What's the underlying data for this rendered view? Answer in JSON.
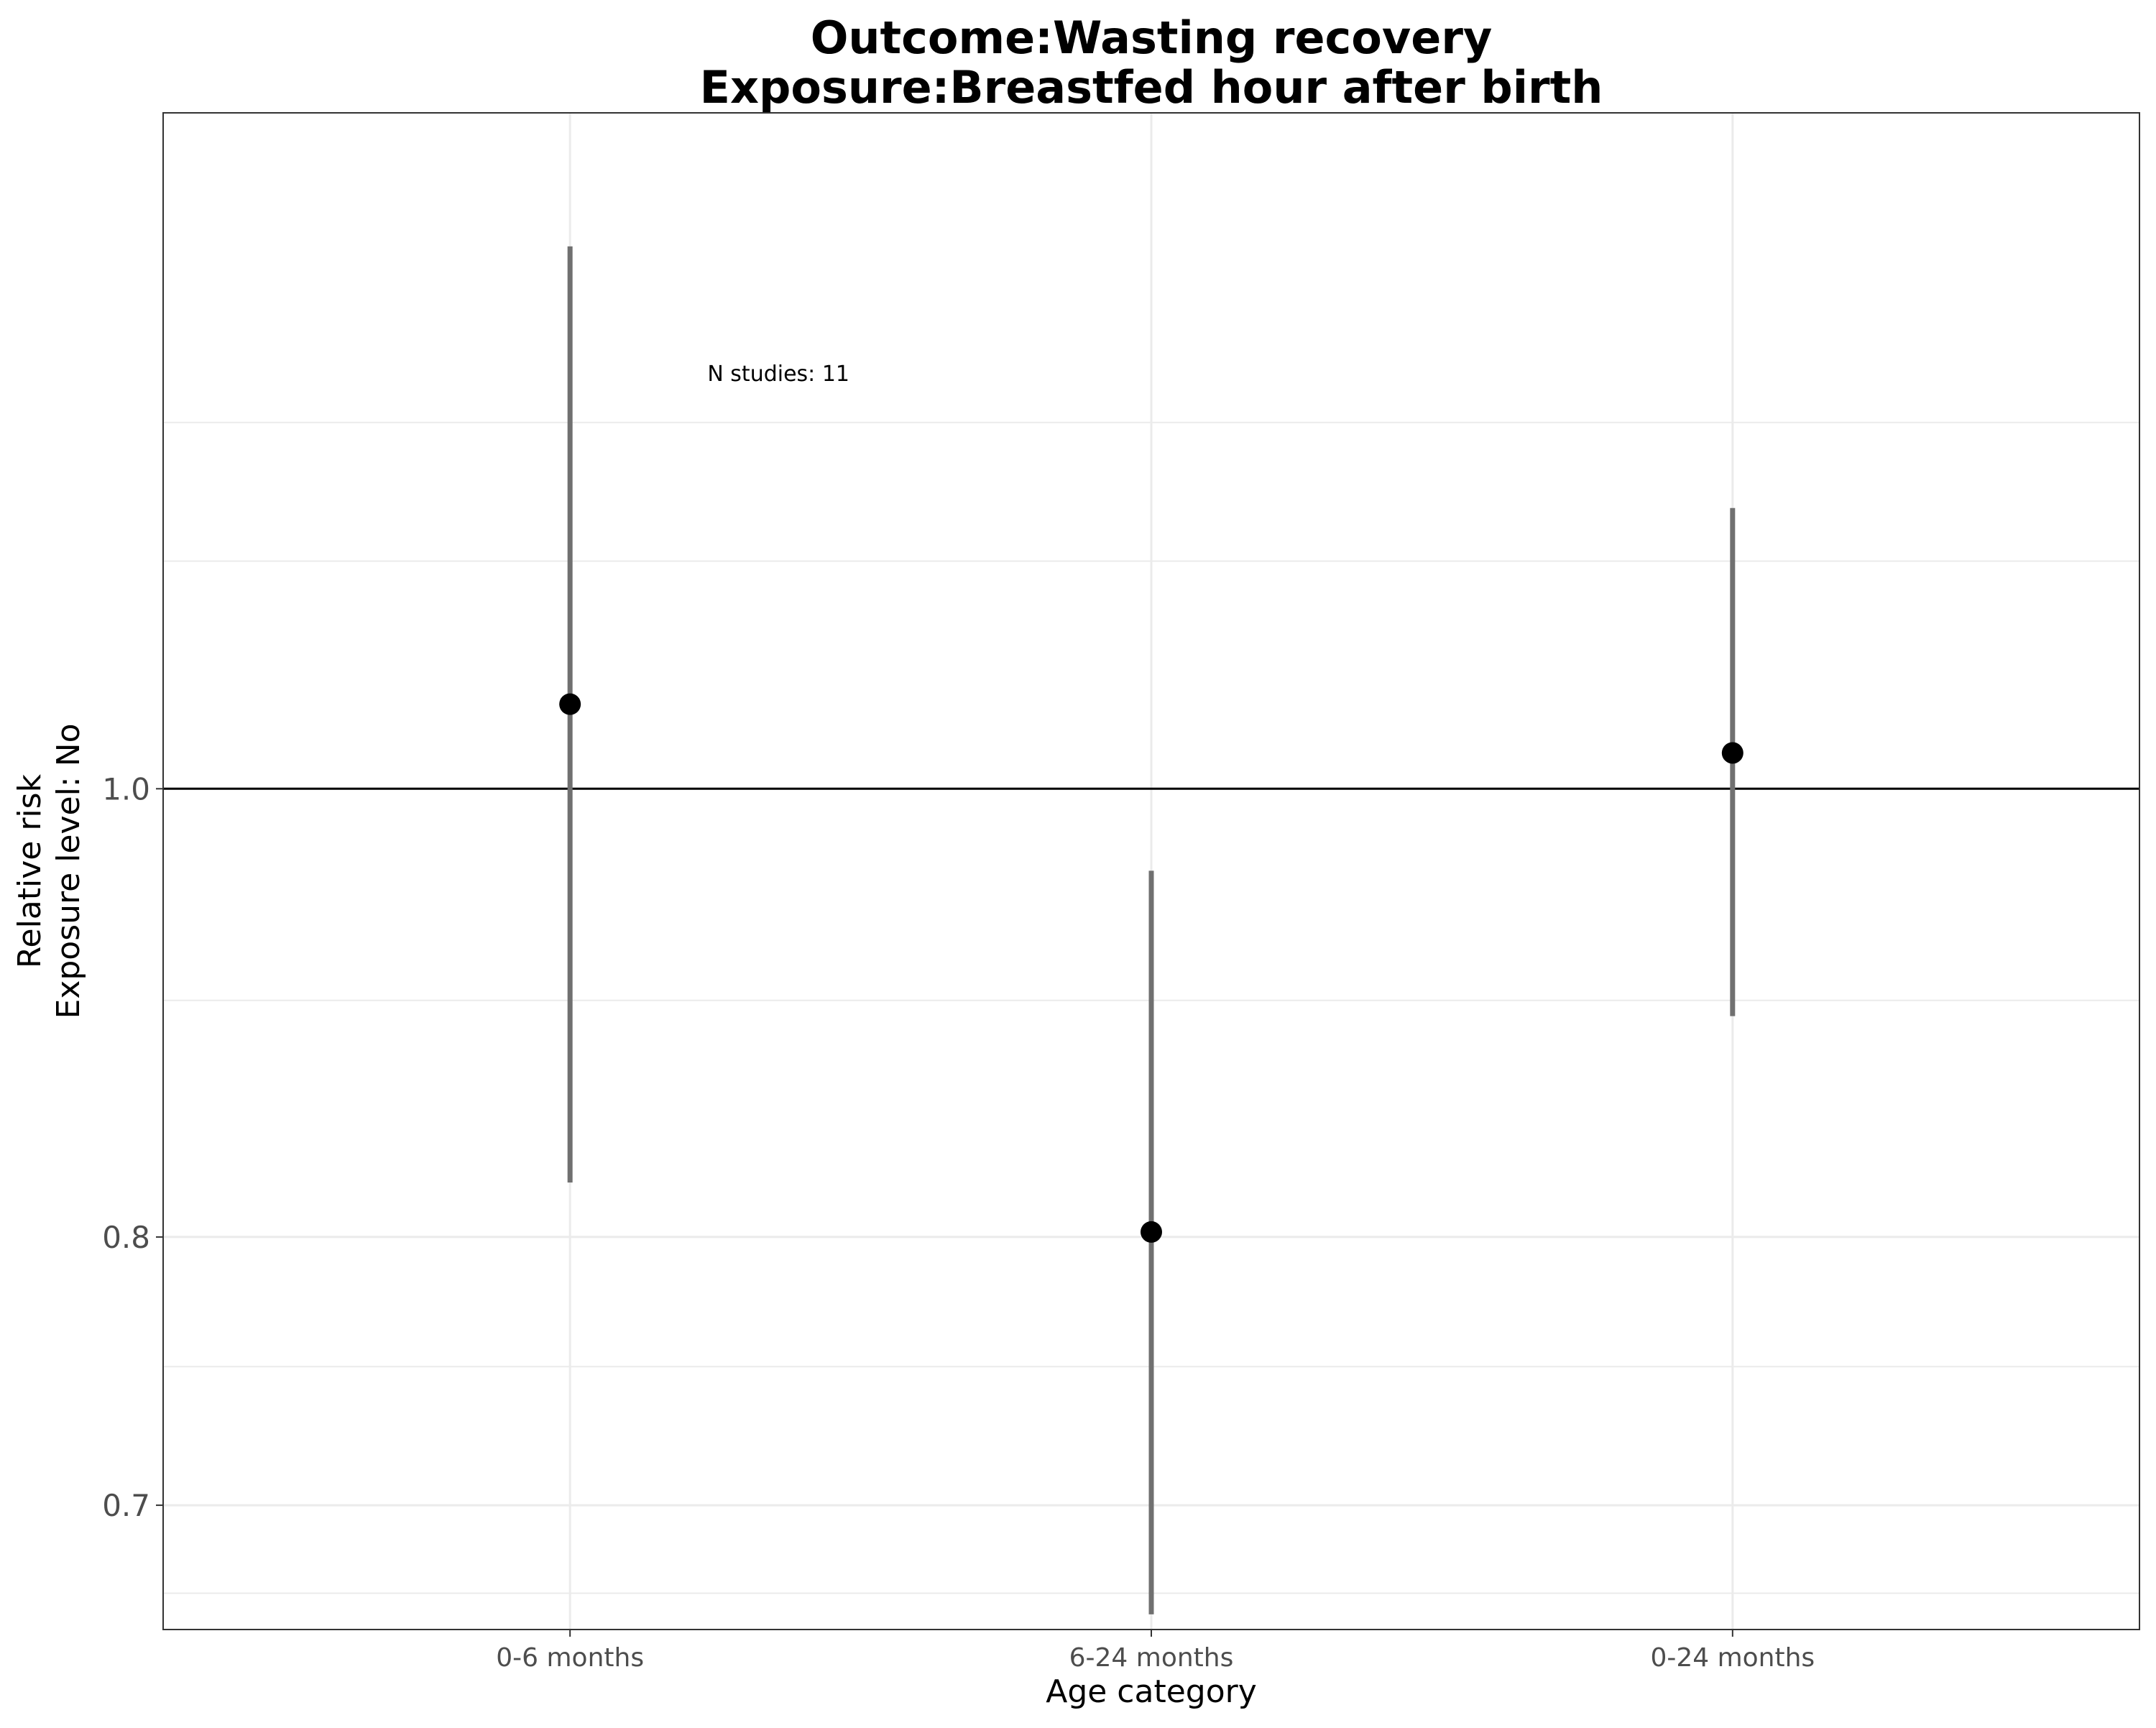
{
  "chart_data": {
    "type": "errorbar",
    "title_lines": [
      "Outcome:Wasting recovery",
      "Exposure:Breastfed hour after birth"
    ],
    "xlabel": "Age category",
    "ylabel_lines": [
      "Relative risk",
      "Exposure level: No"
    ],
    "y_scale": "log",
    "ylim": [
      0.658,
      1.4
    ],
    "y_ticks": [
      0.7,
      0.8,
      1.0
    ],
    "y_tick_labels": [
      "0.7",
      "0.8",
      "1.0"
    ],
    "y_minor_gridlines": [
      0.67,
      0.75,
      0.9,
      1.12,
      1.2
    ],
    "reference_line": 1.0,
    "grid": true,
    "categories": [
      "0-6 months",
      "6-24 months",
      "0-24 months"
    ],
    "points": [
      {
        "category": "0-6 months",
        "estimate": 1.043,
        "lower": 0.822,
        "upper": 1.31
      },
      {
        "category": "6-24 months",
        "estimate": 0.802,
        "lower": 0.663,
        "upper": 0.96
      },
      {
        "category": "0-24 months",
        "estimate": 1.018,
        "lower": 0.893,
        "upper": 1.15
      }
    ],
    "annotation": {
      "text": "N studies: 11",
      "category": "0-6 months",
      "y": 1.23
    },
    "colors": {
      "point": "#000000",
      "errorbar": "#707070",
      "grid": "#ebebeb",
      "refline": "#000000",
      "panel_border": "#333333"
    }
  }
}
